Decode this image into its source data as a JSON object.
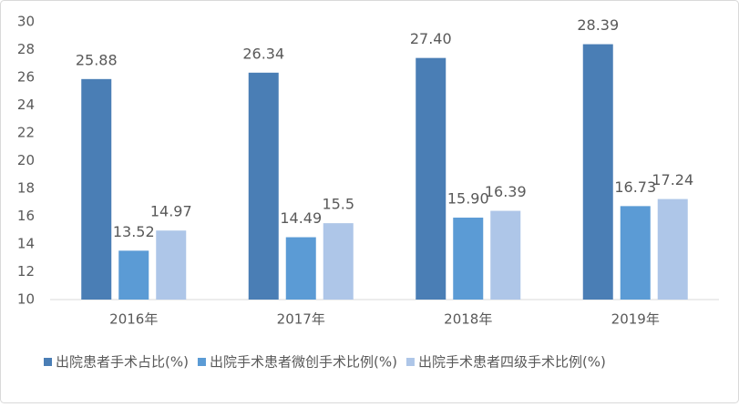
{
  "chart_data": {
    "type": "bar",
    "categories": [
      "2016年",
      "2017年",
      "2018年",
      "2019年"
    ],
    "series": [
      {
        "name": "出院患者手术占比(%)",
        "color": "#4a7eb5",
        "values": [
          25.88,
          26.34,
          27.4,
          28.39
        ],
        "value_labels": [
          "25.88",
          "26.34",
          "27.40",
          "28.39"
        ]
      },
      {
        "name": "出院手术患者微创手术比例(%)",
        "color": "#5b9bd5",
        "values": [
          13.52,
          14.49,
          15.9,
          16.73
        ],
        "value_labels": [
          "13.52",
          "14.49",
          "15.90",
          "16.73"
        ]
      },
      {
        "name": "出院手术患者四级手术比例(%)",
        "color": "#aec6e8",
        "values": [
          14.97,
          15.5,
          16.39,
          17.24
        ],
        "value_labels": [
          "14.97",
          "15.5",
          "16.39",
          "17.24"
        ]
      }
    ],
    "ylim": [
      10,
      30
    ],
    "yticks": [
      10,
      12,
      14,
      16,
      18,
      20,
      22,
      24,
      26,
      28,
      30
    ],
    "grid": false,
    "legend": "bottom"
  }
}
